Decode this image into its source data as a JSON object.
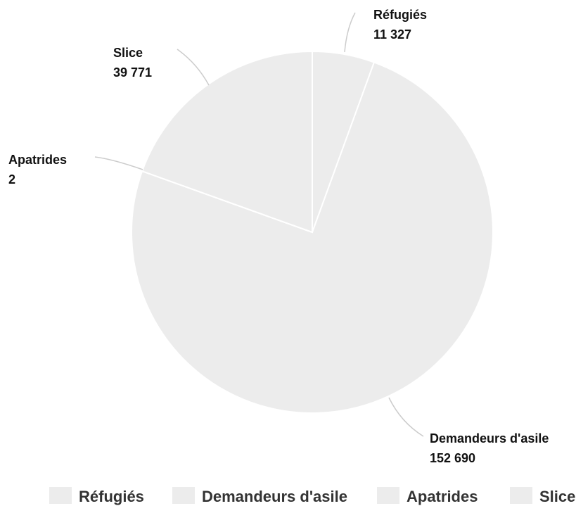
{
  "chart_data": {
    "type": "pie",
    "categories": [
      "Réfugiés",
      "Demandeurs d'asile",
      "Apatrides",
      "Slice"
    ],
    "series": [
      {
        "values": [
          11327,
          152690,
          2,
          39771
        ]
      }
    ],
    "value_labels": [
      "11 327",
      "152 690",
      "2",
      "39 771"
    ],
    "legend": {
      "position": "bottom",
      "items": [
        "Réfugiés",
        "Demandeurs d'asile",
        "Apatrides",
        "Slice"
      ]
    },
    "colors": {
      "slice_fill": "#ececec",
      "slice_stroke": "#ffffff",
      "leader_line": "#cccccc",
      "label_text": "#111111",
      "legend_text": "#333333"
    }
  }
}
